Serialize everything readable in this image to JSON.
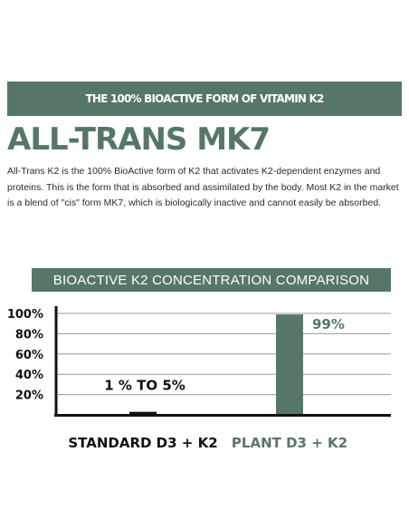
{
  "header": {
    "banner": "THE 100% BIOACTIVE FORM OF VITAMIN K2",
    "title": "ALL-TRANS MK7",
    "description": "All-Trans K2 is the 100% BioActive form of K2 that activates K2-dependent enzymes and proteins. This is the form that is absorbed and assimilated by the body. Most K2 in the market is a blend of \"cis\" form MK7, which is biologically inactive and cannot easily be absorbed."
  },
  "colors": {
    "accent": "#567766",
    "text": "#111111",
    "bar_standard": "#111111",
    "bar_plant": "#567766"
  },
  "chart_data": {
    "type": "bar",
    "title": "BIOACTIVE K2 CONCENTRATION COMPARISON",
    "categories": [
      "STANDARD D3 + K2",
      "PLANT D3 + K2"
    ],
    "values": [
      3,
      99
    ],
    "data_labels": [
      "1 % TO 5%",
      "99%"
    ],
    "bar_colors": [
      "#111111",
      "#567766"
    ],
    "ylim": [
      0,
      100
    ],
    "yticks": [
      20,
      40,
      60,
      80,
      100
    ],
    "ytick_labels": [
      "20%",
      "40%",
      "60%",
      "80%",
      "100%"
    ],
    "grid": true
  }
}
